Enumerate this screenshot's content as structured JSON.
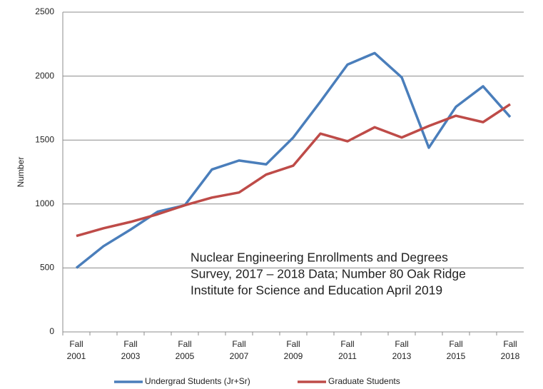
{
  "chart_data": {
    "type": "line",
    "y_label": "Number",
    "annotation": [
      "Nuclear Engineering Enrollments and Degrees",
      "Survey, 2017 – 2018 Data;  Number 80 Oak Ridge",
      "Institute for Science and Education April 2019"
    ],
    "categories": [
      "Fall 2001",
      null,
      "Fall 2003",
      null,
      "Fall 2005",
      null,
      "Fall 2007",
      null,
      "Fall 2009",
      null,
      "Fall 2011",
      null,
      "Fall 2013",
      null,
      "Fall 2015",
      null,
      "Fall 2018"
    ],
    "series": [
      {
        "name": "Undergrad Students (Jr+Sr)",
        "color": "#4a7ebb",
        "values": [
          500,
          670,
          800,
          940,
          990,
          1270,
          1340,
          1310,
          1520,
          1800,
          2090,
          2180,
          1990,
          1440,
          1760,
          1920,
          1680
        ]
      },
      {
        "name": "Graduate Students",
        "color": "#be4b48",
        "values": [
          750,
          810,
          860,
          920,
          990,
          1050,
          1090,
          1230,
          1300,
          1550,
          1490,
          1600,
          1520,
          1610,
          1690,
          1640,
          1780
        ]
      }
    ],
    "ylim": [
      0,
      2500
    ],
    "yticks": [
      0,
      500,
      1000,
      1500,
      2000,
      2500
    ],
    "grid": true
  }
}
